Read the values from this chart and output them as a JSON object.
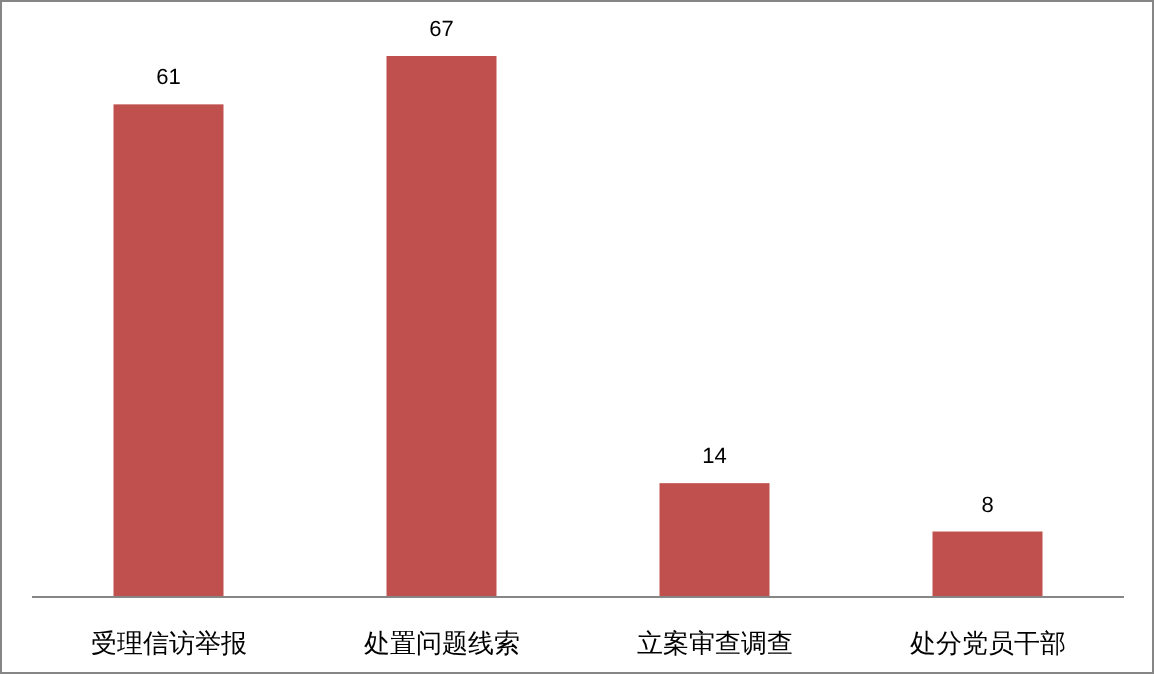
{
  "chart_data": {
    "type": "bar",
    "categories": [
      "受理信访举报",
      "处置问题线索",
      "立案审查调查",
      "处分党员干部"
    ],
    "values": [
      61,
      67,
      14,
      8
    ],
    "color": "#c0504d",
    "data_labels": true
  }
}
